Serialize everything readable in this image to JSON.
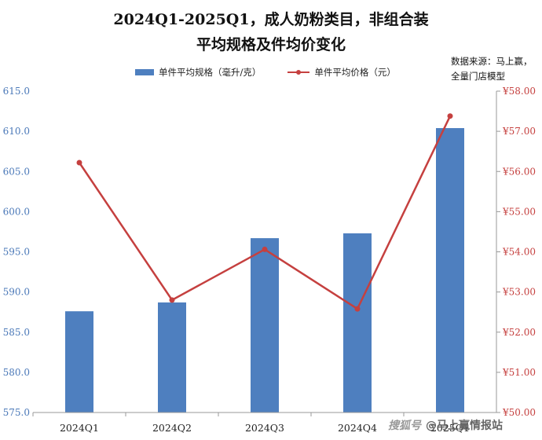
{
  "title_line1": "2024Q1-2025Q1，成人奶粉类目，非组合装",
  "title_line2": "平均规格及件均价变化",
  "source_line1": "数据来源：马上赢，",
  "source_line2": "全量门店模型",
  "watermark_logo": "搜狐号",
  "watermark_text": "@马上赢情报站",
  "colors": {
    "bar": "#4e7fbf",
    "line": "#c5403f",
    "left_axis_text": "#4a78b8",
    "right_axis_text": "#c5403f"
  },
  "chart_data": {
    "type": "bar+line",
    "categories": [
      "2024Q1",
      "2024Q2",
      "2024Q3",
      "2024Q4",
      "2025Q1"
    ],
    "series": [
      {
        "name": "单件平均规格（毫升/克）",
        "type": "bar",
        "axis": "left",
        "values": [
          587.6,
          588.7,
          596.7,
          597.3,
          610.4
        ]
      },
      {
        "name": "单件平均价格（元）",
        "type": "line",
        "axis": "right",
        "values": [
          56.22,
          52.8,
          54.06,
          52.58,
          57.38
        ]
      }
    ],
    "left_axis": {
      "ylim": [
        575,
        615
      ],
      "ticks": [
        "575.0",
        "580.0",
        "585.0",
        "590.0",
        "595.0",
        "600.0",
        "605.0",
        "610.0",
        "615.0"
      ]
    },
    "right_axis": {
      "ylim": [
        50,
        58
      ],
      "ticks": [
        "¥50.00",
        "¥51.00",
        "¥52.00",
        "¥53.00",
        "¥54.00",
        "¥55.00",
        "¥56.00",
        "¥57.00",
        "¥58.00"
      ]
    },
    "legend_position": "top-center",
    "grid": false
  }
}
